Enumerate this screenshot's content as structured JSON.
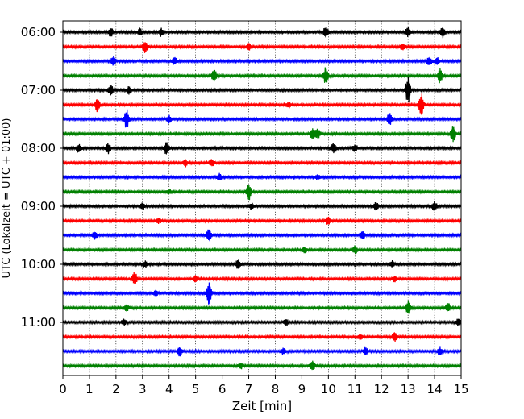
{
  "chart_data": {
    "type": "line",
    "title": "",
    "xlabel": "Zeit  [min]",
    "ylabel": "UTC (Lokalzeit = UTC + 01:00)",
    "xlim": [
      0,
      15
    ],
    "x_ticks": [
      "0",
      "1",
      "2",
      "3",
      "4",
      "5",
      "6",
      "7",
      "8",
      "9",
      "10",
      "11",
      "12",
      "13",
      "14",
      "15"
    ],
    "y_tick_labels": [
      "06:00",
      "07:00",
      "08:00",
      "09:00",
      "10:00",
      "11:00"
    ],
    "y_tick_trace_index": [
      0,
      4,
      8,
      12,
      16,
      20
    ],
    "grid": "vertical dotted lines at each minute",
    "series_colors": [
      "#000000",
      "#ff0000",
      "#0000ff",
      "#008000"
    ],
    "traces": [
      {
        "start": "06:00",
        "color": "#000000",
        "events": [
          [
            1.8,
            0.6
          ],
          [
            2.9,
            0.5
          ],
          [
            3.7,
            0.5
          ],
          [
            9.9,
            0.7
          ],
          [
            13.0,
            0.6
          ],
          [
            14.3,
            0.7
          ]
        ]
      },
      {
        "start": "06:15",
        "color": "#ff0000",
        "events": [
          [
            3.1,
            0.8
          ],
          [
            7.0,
            0.4
          ],
          [
            12.8,
            0.4
          ]
        ]
      },
      {
        "start": "06:30",
        "color": "#0000ff",
        "events": [
          [
            1.9,
            0.6
          ],
          [
            4.2,
            0.5
          ],
          [
            13.8,
            0.7
          ],
          [
            14.1,
            0.5
          ]
        ]
      },
      {
        "start": "06:45",
        "color": "#008000",
        "events": [
          [
            5.7,
            0.8
          ],
          [
            9.9,
            1.1
          ],
          [
            14.2,
            0.9
          ]
        ]
      },
      {
        "start": "07:00",
        "color": "#000000",
        "events": [
          [
            1.8,
            0.7
          ],
          [
            2.5,
            0.5
          ],
          [
            13.0,
            1.8
          ]
        ]
      },
      {
        "start": "07:15",
        "color": "#ff0000",
        "events": [
          [
            1.3,
            1.0
          ],
          [
            8.5,
            0.4
          ],
          [
            13.5,
            1.6
          ]
        ]
      },
      {
        "start": "07:30",
        "color": "#0000ff",
        "events": [
          [
            2.4,
            1.3
          ],
          [
            4.0,
            0.5
          ],
          [
            12.3,
            0.9
          ]
        ]
      },
      {
        "start": "07:45",
        "color": "#008000",
        "events": [
          [
            9.4,
            0.7
          ],
          [
            9.6,
            0.6
          ],
          [
            14.7,
            1.2
          ]
        ]
      },
      {
        "start": "08:00",
        "color": "#000000",
        "events": [
          [
            0.6,
            0.6
          ],
          [
            1.7,
            0.7
          ],
          [
            3.9,
            0.8
          ],
          [
            10.2,
            0.8
          ],
          [
            11.0,
            0.5
          ]
        ]
      },
      {
        "start": "08:15",
        "color": "#ff0000",
        "events": [
          [
            4.6,
            0.5
          ],
          [
            5.6,
            0.5
          ]
        ]
      },
      {
        "start": "08:30",
        "color": "#0000ff",
        "events": [
          [
            5.9,
            0.5
          ],
          [
            9.6,
            0.3
          ]
        ]
      },
      {
        "start": "08:45",
        "color": "#008000",
        "events": [
          [
            7.0,
            1.2
          ],
          [
            4.0,
            0.3
          ]
        ]
      },
      {
        "start": "09:00",
        "color": "#000000",
        "events": [
          [
            3.0,
            0.4
          ],
          [
            7.1,
            0.4
          ],
          [
            11.8,
            0.5
          ],
          [
            14.0,
            0.6
          ]
        ]
      },
      {
        "start": "09:15",
        "color": "#ff0000",
        "events": [
          [
            3.6,
            0.4
          ],
          [
            10.0,
            0.6
          ]
        ]
      },
      {
        "start": "09:30",
        "color": "#0000ff",
        "events": [
          [
            1.2,
            0.5
          ],
          [
            5.5,
            0.8
          ],
          [
            11.3,
            0.5
          ]
        ]
      },
      {
        "start": "09:45",
        "color": "#008000",
        "events": [
          [
            9.1,
            0.4
          ],
          [
            11.0,
            0.5
          ]
        ]
      },
      {
        "start": "10:00",
        "color": "#000000",
        "events": [
          [
            3.1,
            0.4
          ],
          [
            6.6,
            0.6
          ],
          [
            12.4,
            0.4
          ]
        ]
      },
      {
        "start": "10:15",
        "color": "#ff0000",
        "events": [
          [
            2.7,
            0.9
          ],
          [
            5.0,
            0.4
          ],
          [
            12.5,
            0.4
          ]
        ]
      },
      {
        "start": "10:30",
        "color": "#0000ff",
        "events": [
          [
            5.5,
            1.5
          ],
          [
            3.5,
            0.4
          ]
        ]
      },
      {
        "start": "10:45",
        "color": "#008000",
        "events": [
          [
            2.4,
            0.4
          ],
          [
            13.0,
            0.9
          ],
          [
            14.5,
            0.6
          ]
        ]
      },
      {
        "start": "11:00",
        "color": "#000000",
        "events": [
          [
            2.3,
            0.4
          ],
          [
            8.4,
            0.4
          ],
          [
            14.9,
            0.5
          ]
        ]
      },
      {
        "start": "11:15",
        "color": "#ff0000",
        "events": [
          [
            11.2,
            0.4
          ],
          [
            12.5,
            0.6
          ]
        ]
      },
      {
        "start": "11:30",
        "color": "#0000ff",
        "events": [
          [
            4.4,
            0.6
          ],
          [
            8.3,
            0.4
          ],
          [
            11.4,
            0.5
          ],
          [
            14.2,
            0.5
          ]
        ]
      },
      {
        "start": "11:45",
        "color": "#008000",
        "events": [
          [
            6.7,
            0.4
          ],
          [
            9.4,
            0.6
          ]
        ]
      }
    ]
  }
}
